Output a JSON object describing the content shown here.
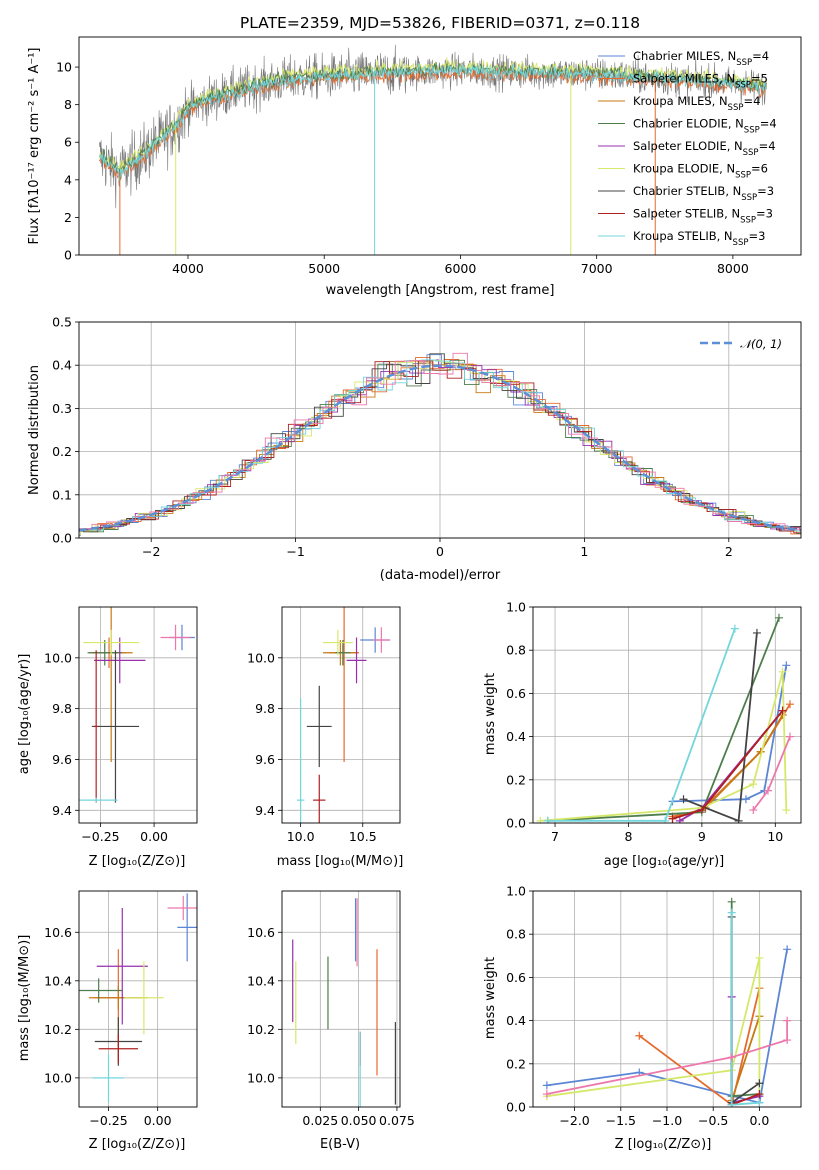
{
  "colors": {
    "Chabrier MILES": "#5b86d6",
    "Salpeter MILES": "#e56a2d",
    "Kroupa MILES": "#c77a12",
    "Chabrier ELODIE": "#4e7e4e",
    "Salpeter ELODIE": "#9a2fae",
    "Kroupa ELODIE": "#d6e86a",
    "Chabrier STELIB": "#444444",
    "Salpeter STELIB": "#b02020",
    "Kroupa STELIB": "#72d6dc",
    "pink": "#ee77aa",
    "normal": "#5b8fd6"
  },
  "chart_data": [
    {
      "id": "spectrum",
      "type": "line",
      "title": "PLATE=2359, MJD=53826, FIBERID=0371, z=0.118",
      "xlabel": "wavelength [Angstrom, rest frame]",
      "ylabel": "Flux [fλ10⁻¹⁷ erg cm⁻² s⁻¹ A⁻¹]",
      "xlim": [
        3200,
        8500
      ],
      "ylim": [
        0,
        11.6
      ],
      "xticks": [
        "4000",
        "5000",
        "6000",
        "7000",
        "8000"
      ],
      "yticks": [
        "0",
        "2",
        "4",
        "6",
        "8",
        "10"
      ],
      "data_range_x": [
        3350,
        8250
      ],
      "continuum": {
        "x": [
          3350,
          3500,
          3700,
          3900,
          4000,
          4200,
          4500,
          4800,
          5000,
          5500,
          6000,
          6500,
          7000,
          7500,
          8000,
          8250
        ],
        "y": [
          5.2,
          4.4,
          5.5,
          6.8,
          7.8,
          8.4,
          9.0,
          9.4,
          9.5,
          9.7,
          9.8,
          9.7,
          9.6,
          9.4,
          9.1,
          8.9
        ]
      },
      "legend": [
        "Chabrier MILES, N_SSP=4",
        "Salpeter MILES, N_SSP=5",
        "Kroupa MILES, N_SSP=4",
        "Chabrier ELODIE, N_SSP=4",
        "Salpeter ELODIE, N_SSP=4",
        "Kroupa ELODIE, N_SSP=6",
        "Chabrier STELIB, N_SSP=3",
        "Salpeter STELIB, N_SSP=3",
        "Kroupa STELIB, N_SSP=3"
      ]
    },
    {
      "id": "residuals",
      "type": "histogram",
      "xlabel": "(data-model)/error",
      "ylabel": "Normed distribution",
      "xlim": [
        -2.5,
        2.5
      ],
      "ylim": [
        0,
        0.5
      ],
      "xticks": [
        "−2",
        "−1",
        "0",
        "1",
        "2"
      ],
      "yticks": [
        "0.0",
        "0.1",
        "0.2",
        "0.3",
        "0.4",
        "0.5"
      ],
      "legend": [
        "𝒩(0, 1)"
      ]
    },
    {
      "id": "age-vs-Z",
      "type": "scatter",
      "xlabel": "Z [log₁₀(Z/Z⊙)]",
      "ylabel": "age  [log₁₀(age/yr)]",
      "xlim": [
        -0.35,
        0.2
      ],
      "ylim": [
        9.35,
        10.2
      ],
      "xticks": [
        "−0.25",
        "0.00"
      ],
      "yticks": [
        "9.4",
        "9.6",
        "9.8",
        "10.0"
      ],
      "points": [
        {
          "series": "Chabrier MILES",
          "x": 0.13,
          "y": 10.08,
          "xerr": 0.06,
          "yerr": 0.05
        },
        {
          "series": "Salpeter MILES",
          "x": -0.21,
          "y": 10.02,
          "xerr": 0.08,
          "yerr": 0.06
        },
        {
          "series": "Kroupa MILES",
          "x": -0.2,
          "y": 10.02,
          "xerr": 0.1,
          "yerr": 0.43
        },
        {
          "series": "Chabrier ELODIE",
          "x": -0.23,
          "y": 10.02,
          "xerr": 0.08,
          "yerr": 0.05
        },
        {
          "series": "Salpeter ELODIE",
          "x": -0.16,
          "y": 9.99,
          "xerr": 0.12,
          "yerr": 0.09
        },
        {
          "series": "Kroupa ELODIE",
          "x": -0.2,
          "y": 10.06,
          "xerr": 0.13,
          "yerr": 0.05
        },
        {
          "series": "Chabrier STELIB",
          "x": -0.18,
          "y": 9.73,
          "xerr": 0.11,
          "yerr": 0.3
        },
        {
          "series": "Salpeter STELIB",
          "x": -0.27,
          "y": 9.73,
          "xerr": 0.01,
          "yerr": 0.3
        },
        {
          "series": "Kroupa STELIB",
          "x": -0.27,
          "y": 9.44,
          "xerr": 0.1,
          "yerr": 0.01
        },
        {
          "series": "pink",
          "x": 0.1,
          "y": 10.08,
          "xerr": 0.07,
          "yerr": 0.05
        }
      ]
    },
    {
      "id": "age-vs-mass",
      "type": "scatter",
      "xlabel": "mass [log₁₀(M/M⊙)]",
      "ylabel": "",
      "xlim": [
        9.85,
        10.8
      ],
      "ylim": [
        9.35,
        10.2
      ],
      "xticks": [
        "10.0",
        "10.5"
      ],
      "yticks": [
        "9.4",
        "9.6",
        "9.8",
        "10.0"
      ],
      "points": [
        {
          "series": "Chabrier MILES",
          "x": 10.6,
          "y": 10.07,
          "xerr": 0.12,
          "yerr": 0.05
        },
        {
          "series": "Salpeter MILES",
          "x": 10.35,
          "y": 10.02,
          "xerr": 0.12,
          "yerr": 0.43
        },
        {
          "series": "Kroupa MILES",
          "x": 10.32,
          "y": 10.02,
          "xerr": 0.14,
          "yerr": 0.05
        },
        {
          "series": "Chabrier ELODIE",
          "x": 10.34,
          "y": 10.02,
          "xerr": 0.06,
          "yerr": 0.05
        },
        {
          "series": "Salpeter ELODIE",
          "x": 10.45,
          "y": 9.99,
          "xerr": 0.08,
          "yerr": 0.09
        },
        {
          "series": "Kroupa ELODIE",
          "x": 10.3,
          "y": 10.06,
          "xerr": 0.12,
          "yerr": 0.05
        },
        {
          "series": "Chabrier STELIB",
          "x": 10.15,
          "y": 9.73,
          "xerr": 0.1,
          "yerr": 0.16
        },
        {
          "series": "Salpeter STELIB",
          "x": 10.15,
          "y": 9.44,
          "xerr": 0.05,
          "yerr": 0.1
        },
        {
          "series": "Kroupa STELIB",
          "x": 10.0,
          "y": 9.44,
          "xerr": 0.03,
          "yerr": 0.4
        },
        {
          "series": "pink",
          "x": 10.65,
          "y": 10.07,
          "xerr": 0.07,
          "yerr": 0.05
        }
      ]
    },
    {
      "id": "weight-vs-age",
      "type": "line",
      "xlabel": "age  [log₁₀(age/yr)]",
      "ylabel": "mass weight",
      "xlim": [
        6.7,
        10.35
      ],
      "ylim": [
        0,
        1.0
      ],
      "xticks": [
        "7",
        "8",
        "9",
        "10"
      ],
      "yticks": [
        "0.0",
        "0.2",
        "0.4",
        "0.6",
        "0.8",
        "1.0"
      ],
      "series": [
        {
          "color": "Chabrier MILES",
          "x": [
            8.6,
            9.6,
            9.85,
            10.15
          ],
          "y": [
            0.1,
            0.11,
            0.15,
            0.73
          ]
        },
        {
          "color": "Salpeter MILES",
          "x": [
            8.6,
            9.0,
            9.8,
            10.2
          ],
          "y": [
            0.03,
            0.06,
            0.33,
            0.55
          ]
        },
        {
          "color": "Kroupa MILES",
          "x": [
            8.6,
            9.05,
            9.8,
            10.1
          ],
          "y": [
            0.02,
            0.07,
            0.33,
            0.5
          ]
        },
        {
          "color": "Chabrier ELODIE",
          "x": [
            6.9,
            9.0,
            10.05
          ],
          "y": [
            0.01,
            0.05,
            0.95
          ]
        },
        {
          "color": "Salpeter ELODIE",
          "x": [
            8.7,
            9.0,
            10.1
          ],
          "y": [
            0.01,
            0.07,
            0.52
          ]
        },
        {
          "color": "Kroupa ELODIE",
          "x": [
            6.8,
            9.0,
            9.7,
            10.1,
            10.15
          ],
          "y": [
            0.01,
            0.07,
            0.18,
            0.7,
            0.06
          ]
        },
        {
          "color": "Chabrier STELIB",
          "x": [
            8.75,
            9.5,
            9.75
          ],
          "y": [
            0.11,
            0.01,
            0.88
          ]
        },
        {
          "color": "Salpeter STELIB",
          "x": [
            8.6,
            9.0,
            10.1
          ],
          "y": [
            0.02,
            0.06,
            0.52
          ]
        },
        {
          "color": "Kroupa STELIB",
          "x": [
            6.9,
            8.5,
            9.45
          ],
          "y": [
            0.01,
            0.01,
            0.9
          ]
        },
        {
          "color": "pink",
          "x": [
            9.7,
            9.9,
            10.2
          ],
          "y": [
            0.06,
            0.15,
            0.4
          ]
        }
      ]
    },
    {
      "id": "mass-vs-Z",
      "type": "scatter",
      "xlabel": "Z [log₁₀(Z/Z⊙)]",
      "ylabel": "mass [log₁₀(M/M⊙)]",
      "xlim": [
        -0.4,
        0.2
      ],
      "ylim": [
        9.88,
        10.77
      ],
      "xticks": [
        "−0.25",
        "0.00"
      ],
      "yticks": [
        "10.0",
        "10.2",
        "10.4",
        "10.6"
      ],
      "points": [
        {
          "series": "Chabrier MILES",
          "x": 0.15,
          "y": 10.62,
          "xerr": 0.05,
          "yerr": 0.14
        },
        {
          "series": "Salpeter MILES",
          "x": -0.2,
          "y": 10.33,
          "xerr": 0.12,
          "yerr": 0.2
        },
        {
          "series": "Kroupa MILES",
          "x": -0.2,
          "y": 10.33,
          "xerr": 0.15,
          "yerr": 0.05
        },
        {
          "series": "Chabrier ELODIE",
          "x": -0.3,
          "y": 10.36,
          "xerr": 0.12,
          "yerr": 0.05
        },
        {
          "series": "Salpeter ELODIE",
          "x": -0.18,
          "y": 10.46,
          "xerr": 0.13,
          "yerr": 0.24
        },
        {
          "series": "Kroupa ELODIE",
          "x": -0.07,
          "y": 10.33,
          "xerr": 0.1,
          "yerr": 0.15
        },
        {
          "series": "Chabrier STELIB",
          "x": -0.2,
          "y": 10.15,
          "xerr": 0.12,
          "yerr": 0.1
        },
        {
          "series": "Salpeter STELIB",
          "x": -0.2,
          "y": 10.12,
          "xerr": 0.1,
          "yerr": 0.06
        },
        {
          "series": "Kroupa STELIB",
          "x": -0.25,
          "y": 10.0,
          "xerr": 0.08,
          "yerr": 0.1
        },
        {
          "series": "pink",
          "x": 0.13,
          "y": 10.7,
          "xerr": 0.08,
          "yerr": 0.05
        }
      ]
    },
    {
      "id": "mass-vs-ebv",
      "type": "errorbar",
      "xlabel": "E(B-V)",
      "ylabel": "",
      "xlim": [
        0.0,
        0.077
      ],
      "ylim": [
        9.88,
        10.77
      ],
      "xticks": [
        "0.025",
        "0.050",
        "0.075"
      ],
      "yticks": [
        "10.0",
        "10.2",
        "10.4",
        "10.6"
      ],
      "points": [
        {
          "series": "Salpeter ELODIE",
          "x": 0.007,
          "y": 10.4,
          "yerr": 0.17
        },
        {
          "series": "Kroupa ELODIE",
          "x": 0.009,
          "y": 10.31,
          "yerr": 0.17
        },
        {
          "series": "Chabrier ELODIE",
          "x": 0.03,
          "y": 10.35,
          "yerr": 0.15
        },
        {
          "series": "Chabrier MILES",
          "x": 0.048,
          "y": 10.61,
          "yerr": 0.13
        },
        {
          "series": "pink",
          "x": 0.049,
          "y": 10.6,
          "yerr": 0.14
        },
        {
          "series": "Salpeter STELIB",
          "x": 0.051,
          "y": 10.12,
          "yerr": 0.07
        },
        {
          "series": "Kroupa STELIB",
          "x": 0.051,
          "y": 10.02,
          "yerr": 0.17
        },
        {
          "series": "Salpeter MILES",
          "x": 0.062,
          "y": 10.27,
          "yerr": 0.26
        },
        {
          "series": "Chabrier STELIB",
          "x": 0.074,
          "y": 10.06,
          "yerr": 0.17
        }
      ]
    },
    {
      "id": "weight-vs-Z",
      "type": "line",
      "xlabel": "Z [log₁₀(Z/Z⊙)]",
      "ylabel": "mass weight",
      "xlim": [
        -2.45,
        0.45
      ],
      "ylim": [
        0,
        1.0
      ],
      "xticks": [
        "−2.0",
        "−1.5",
        "−1.0",
        "−0.5",
        "0.0"
      ],
      "yticks": [
        "0.0",
        "0.2",
        "0.4",
        "0.6",
        "0.8",
        "1.0"
      ],
      "series": [
        {
          "color": "Chabrier MILES",
          "x": [
            -2.3,
            -1.3,
            0.0,
            0.3
          ],
          "y": [
            0.1,
            0.16,
            0.02,
            0.73
          ]
        },
        {
          "color": "Salpeter MILES",
          "x": [
            -1.3,
            -0.3,
            0.0
          ],
          "y": [
            0.33,
            0.01,
            0.55
          ]
        },
        {
          "color": "Kroupa MILES",
          "x": [
            -0.3,
            0.0
          ],
          "y": [
            0.03,
            0.42
          ]
        },
        {
          "color": "Chabrier ELODIE",
          "x": [
            -0.3,
            -0.3,
            0.0
          ],
          "y": [
            0.95,
            0.05,
            0.06
          ]
        },
        {
          "color": "Salpeter ELODIE",
          "x": [
            -0.3,
            -0.3,
            0.0
          ],
          "y": [
            0.51,
            0.02,
            0.05
          ]
        },
        {
          "color": "Kroupa ELODIE",
          "x": [
            -2.3,
            -0.3,
            0.0,
            0.0
          ],
          "y": [
            0.05,
            0.17,
            0.69,
            0.06
          ]
        },
        {
          "color": "Chabrier STELIB",
          "x": [
            -0.3,
            -0.3,
            0.0
          ],
          "y": [
            0.88,
            0.02,
            0.11
          ]
        },
        {
          "color": "Salpeter STELIB",
          "x": [
            -0.3,
            0.0
          ],
          "y": [
            0.01,
            0.06
          ]
        },
        {
          "color": "Kroupa STELIB",
          "x": [
            -0.3,
            -0.3,
            0.0
          ],
          "y": [
            0.9,
            0.01,
            0.02
          ]
        },
        {
          "color": "pink",
          "x": [
            -2.3,
            -0.3,
            0.3,
            0.3
          ],
          "y": [
            0.06,
            0.23,
            0.31,
            0.4
          ]
        }
      ]
    }
  ]
}
